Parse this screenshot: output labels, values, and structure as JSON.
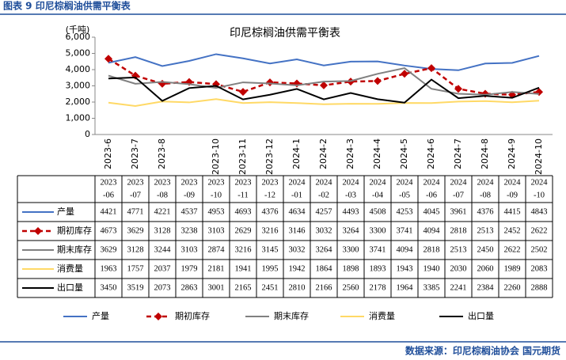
{
  "header": "图表 9  印尼棕榈油供需平衡表",
  "source": "数据来源：印尼棕榈油协会 国元期货",
  "chart_data": {
    "type": "line",
    "title": "印尼棕榈油供需平衡表",
    "y_label": "(千吨)",
    "ylim": [
      0,
      6000
    ],
    "yticks": [
      0,
      {
        "value": 1000,
        "label": "1,000"
      },
      {
        "value": 2000,
        "label": "2,000"
      },
      {
        "value": 3000,
        "label": "3,000"
      },
      {
        "value": 4000,
        "label": "4,000"
      },
      {
        "value": 5000,
        "label": "5,000"
      },
      {
        "value": 6000,
        "label": "6,000"
      }
    ],
    "categories": [
      "2023-6",
      "2023-7",
      "2023-8",
      null,
      "2023-10",
      "2023-11",
      "2023-12",
      "2024-1",
      "2024-2",
      "2024-3",
      "2024-4",
      "2024-5",
      "2024-6",
      "2024-7",
      "2024-8",
      "2024-9",
      "2024-10"
    ],
    "table_columns": [
      [
        "2023",
        "-06"
      ],
      [
        "2023",
        "-07"
      ],
      [
        "2023",
        "-08"
      ],
      [
        "2023",
        "-09"
      ],
      [
        "2023",
        "-10"
      ],
      [
        "2023",
        "-11"
      ],
      [
        "2023",
        "-12"
      ],
      [
        "2024",
        "-01"
      ],
      [
        "2024",
        "-02"
      ],
      [
        "2024",
        "-03"
      ],
      [
        "2024",
        "-04"
      ],
      [
        "2024",
        "-05"
      ],
      [
        "2024",
        "-06"
      ],
      [
        "2024",
        "-07"
      ],
      [
        "2024",
        "-08"
      ],
      [
        "2024",
        "-09"
      ],
      [
        "2024",
        "-10"
      ]
    ],
    "series": [
      {
        "name": "产量",
        "color": "#4472c4",
        "values": [
          4421,
          4771,
          4221,
          4537,
          4953,
          4693,
          4376,
          4634,
          4257,
          4493,
          4508,
          4253,
          4045,
          3961,
          4376,
          4415,
          4843
        ]
      },
      {
        "name": "期初库存",
        "color": "#c00000",
        "dashed": true,
        "markers": true,
        "values": [
          4673,
          3629,
          3128,
          3238,
          3103,
          2629,
          3216,
          3146,
          3032,
          3264,
          3300,
          3741,
          4094,
          2818,
          2513,
          2452,
          2622
        ]
      },
      {
        "name": "期末库存",
        "color": "#808080",
        "values": [
          3629,
          3128,
          3244,
          3103,
          2874,
          3216,
          3145,
          3032,
          3264,
          3300,
          3741,
          4094,
          2818,
          2513,
          2450,
          2622,
          2502
        ]
      },
      {
        "name": "消费量",
        "color": "#ffd966",
        "values": [
          1963,
          1757,
          2037,
          1979,
          2181,
          1941,
          1995,
          1942,
          1864,
          1898,
          1893,
          1943,
          1940,
          2030,
          2060,
          1989,
          2083
        ]
      },
      {
        "name": "出口量",
        "color": "#000000",
        "values": [
          3450,
          3519,
          2073,
          2863,
          3001,
          2165,
          2451,
          2810,
          2166,
          2560,
          2178,
          1964,
          3385,
          2241,
          2384,
          2260,
          2888
        ]
      }
    ]
  }
}
